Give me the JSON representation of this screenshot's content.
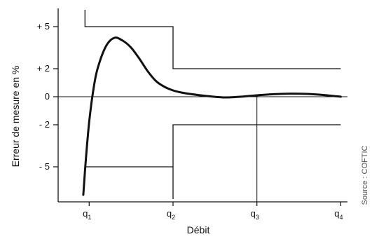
{
  "chart_data": {
    "type": "line",
    "title": "",
    "xlabel": "Débit",
    "ylabel": "Erreur de mesure en %",
    "source": "Source : COFTIC",
    "x_ticks": [
      "q",
      "q",
      "q",
      "q"
    ],
    "x_tick_subscripts": [
      "1",
      "2",
      "3",
      "4"
    ],
    "x_tick_values": [
      1,
      2,
      3,
      4
    ],
    "y_ticks": [
      "+ 5",
      "+ 2",
      "0",
      "- 2",
      "- 5"
    ],
    "y_tick_values": [
      5,
      2,
      0,
      -2,
      -5
    ],
    "xlim": [
      0.63,
      4.08
    ],
    "ylim": [
      -7.5,
      6.3
    ],
    "grid": false,
    "series": [
      {
        "name": "",
        "style": "curve",
        "x": [
          0.93,
          0.96,
          1.0,
          1.05,
          1.1,
          1.2,
          1.3,
          1.4,
          1.5,
          1.6,
          1.7,
          1.8,
          1.9,
          2.0,
          2.1,
          2.2,
          2.4,
          2.6,
          2.8,
          3.0,
          3.2,
          3.4,
          3.6,
          3.8,
          4.0
        ],
        "y": [
          -7.0,
          -4.5,
          -1.8,
          0.5,
          2.0,
          3.6,
          4.2,
          4.0,
          3.5,
          2.7,
          1.8,
          1.1,
          0.7,
          0.45,
          0.3,
          0.2,
          0.05,
          -0.05,
          0.0,
          0.1,
          0.18,
          0.22,
          0.2,
          0.12,
          0.0
        ]
      }
    ],
    "limit_lines": [
      {
        "name": "",
        "x": [
          0.95,
          0.95,
          2.0,
          2.0,
          4.0
        ],
        "y": [
          6.2,
          5.0,
          5.0,
          2.0,
          2.0
        ]
      },
      {
        "name": "",
        "x": [
          0.95,
          2.0,
          2.0,
          2.0,
          4.0
        ],
        "y": [
          -5.0,
          -5.0,
          -7.3,
          -2.0,
          -2.0
        ]
      }
    ],
    "reference_lines": [
      {
        "orientation": "horizontal",
        "value": 0
      },
      {
        "orientation": "vertical",
        "value": 3
      }
    ]
  }
}
